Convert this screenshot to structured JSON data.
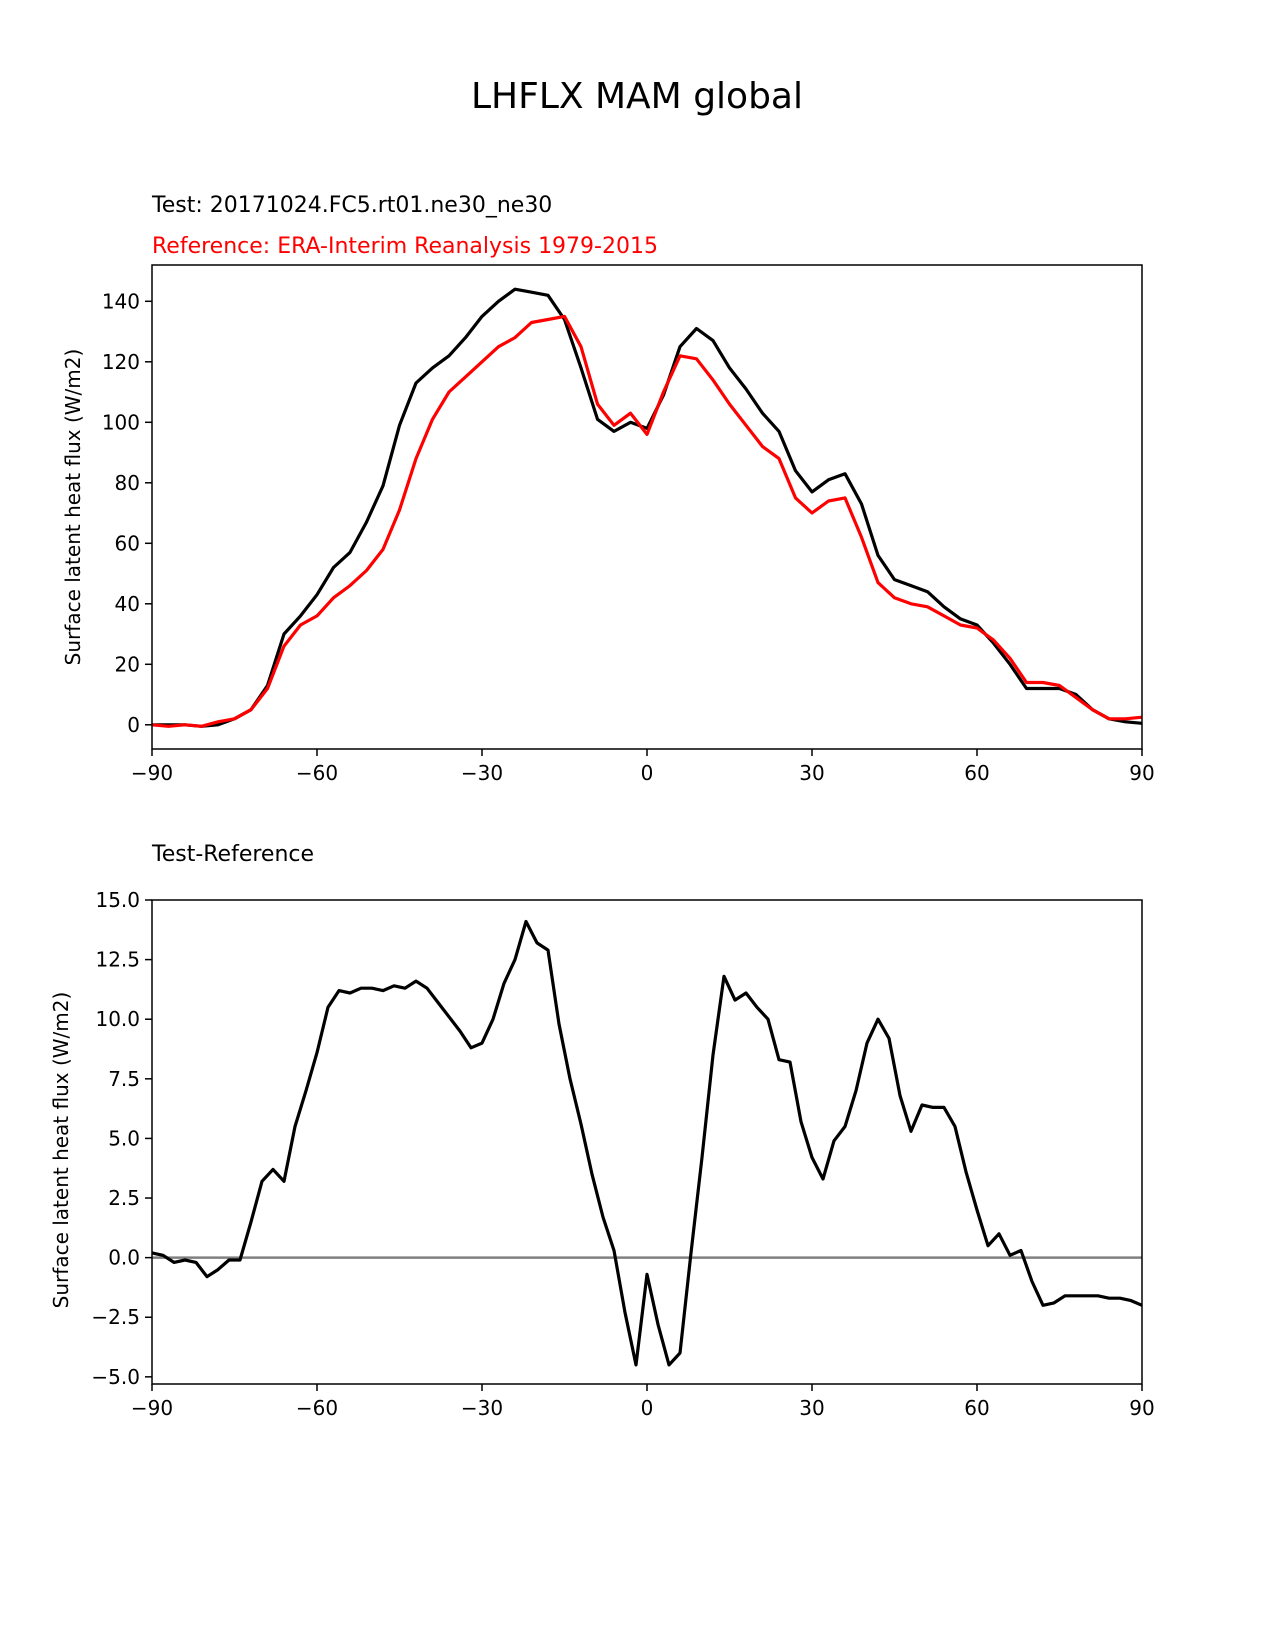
{
  "figure": {
    "title": "LHFLX MAM global"
  },
  "colors": {
    "test": "#000000",
    "reference": "#ff0000",
    "diff": "#000000",
    "zero_line": "#808080",
    "axes": "#000000"
  },
  "chart_data": [
    {
      "type": "line",
      "name": "zonal-mean",
      "test_label": "Test: 20171024.FC5.rt01.ne30_ne30",
      "reference_label": "Reference: ERA-Interim Reanalysis 1979-2015",
      "xlabel": "",
      "ylabel": "Surface latent heat flux (W/m2)",
      "xlim": [
        -90,
        90
      ],
      "ylim": [
        -8,
        152
      ],
      "xticks": [
        -90,
        -60,
        -30,
        0,
        30,
        60,
        90
      ],
      "xtick_labels": [
        "−90",
        "−60",
        "−30",
        "0",
        "30",
        "60",
        "90"
      ],
      "yticks": [
        0,
        20,
        40,
        60,
        80,
        100,
        120,
        140
      ],
      "ytick_labels": [
        "0",
        "20",
        "40",
        "60",
        "80",
        "100",
        "120",
        "140"
      ],
      "x": [
        -90,
        -87,
        -84,
        -81,
        -78,
        -75,
        -72,
        -69,
        -66,
        -63,
        -60,
        -57,
        -54,
        -51,
        -48,
        -45,
        -42,
        -39,
        -36,
        -33,
        -30,
        -27,
        -24,
        -21,
        -18,
        -15,
        -12,
        -9,
        -6,
        -3,
        0,
        3,
        6,
        9,
        12,
        15,
        18,
        21,
        24,
        27,
        30,
        33,
        36,
        39,
        42,
        45,
        48,
        51,
        54,
        57,
        60,
        63,
        66,
        69,
        72,
        75,
        78,
        81,
        84,
        87,
        90
      ],
      "series": [
        {
          "name": "Test",
          "values": [
            0,
            0,
            0,
            -0.5,
            0,
            2,
            5,
            13,
            30,
            36,
            43,
            52,
            57,
            67,
            79,
            99,
            113,
            118,
            122,
            128,
            135,
            140,
            144,
            143,
            142,
            134,
            118,
            101,
            97,
            100,
            98,
            109,
            125,
            131,
            127,
            118,
            111,
            103,
            97,
            84,
            77,
            81,
            83,
            73,
            56,
            48,
            46,
            44,
            39,
            35,
            33,
            27,
            20,
            12,
            12,
            12,
            10,
            5,
            2,
            1,
            0.5
          ]
        },
        {
          "name": "Reference",
          "values": [
            0,
            -0.5,
            0,
            -0.5,
            1,
            2,
            5,
            12,
            26,
            33,
            36,
            42,
            46,
            51,
            58,
            71,
            88,
            101,
            110,
            115,
            120,
            125,
            128,
            133,
            134,
            135,
            125,
            106,
            99,
            103,
            96,
            110,
            122,
            121,
            114,
            106,
            99,
            92,
            88,
            75,
            70,
            74,
            75,
            62,
            47,
            42,
            40,
            39,
            36,
            33,
            32,
            28,
            22,
            14,
            14,
            13,
            9,
            5,
            2,
            2,
            2.5
          ]
        }
      ]
    },
    {
      "type": "line",
      "name": "difference",
      "title": "Test-Reference",
      "xlabel": "",
      "ylabel": "Surface latent heat flux (W/m2)",
      "xlim": [
        -90,
        90
      ],
      "ylim": [
        -5.3,
        15
      ],
      "xticks": [
        -90,
        -60,
        -30,
        0,
        30,
        60,
        90
      ],
      "xtick_labels": [
        "−90",
        "−60",
        "−30",
        "0",
        "30",
        "60",
        "90"
      ],
      "yticks": [
        -5,
        -2.5,
        0,
        2.5,
        5,
        7.5,
        10,
        12.5,
        15
      ],
      "ytick_labels": [
        "−5.0",
        "−2.5",
        "0.0",
        "2.5",
        "5.0",
        "7.5",
        "10.0",
        "12.5",
        "15.0"
      ],
      "zero_line": 0,
      "x": [
        -90,
        -88,
        -86,
        -84,
        -82,
        -80,
        -78,
        -76,
        -74,
        -72,
        -70,
        -68,
        -66,
        -64,
        -62,
        -60,
        -58,
        -56,
        -54,
        -52,
        -50,
        -48,
        -46,
        -44,
        -42,
        -40,
        -38,
        -36,
        -34,
        -32,
        -30,
        -28,
        -26,
        -24,
        -22,
        -20,
        -18,
        -16,
        -14,
        -12,
        -10,
        -8,
        -6,
        -4,
        -2,
        0,
        2,
        4,
        6,
        8,
        10,
        12,
        14,
        16,
        18,
        20,
        22,
        24,
        26,
        28,
        30,
        32,
        34,
        36,
        38,
        40,
        42,
        44,
        46,
        48,
        50,
        52,
        54,
        56,
        58,
        60,
        62,
        64,
        66,
        68,
        70,
        72,
        74,
        76,
        78,
        80,
        82,
        84,
        86,
        88,
        90
      ],
      "series": [
        {
          "name": "Test-Reference",
          "values": [
            0.2,
            0.1,
            -0.2,
            -0.1,
            -0.2,
            -0.8,
            -0.5,
            -0.1,
            -0.1,
            1.5,
            3.2,
            3.7,
            3.2,
            5.5,
            7,
            8.6,
            10.5,
            11.2,
            11.1,
            11.3,
            11.3,
            11.2,
            11.4,
            11.3,
            11.6,
            11.3,
            10.7,
            10.1,
            9.5,
            8.8,
            9,
            10,
            11.5,
            12.5,
            14.1,
            13.2,
            12.9,
            9.8,
            7.5,
            5.6,
            3.5,
            1.7,
            0.3,
            -2.3,
            -4.5,
            -0.7,
            -2.8,
            -4.5,
            -4,
            0.2,
            4.2,
            8.5,
            11.8,
            10.8,
            11.1,
            10.5,
            10,
            8.3,
            8.2,
            5.7,
            4.2,
            3.3,
            4.9,
            5.5,
            7,
            9,
            10,
            9.2,
            6.8,
            5.3,
            6.4,
            6.3,
            6.3,
            5.5,
            3.6,
            2,
            0.5,
            1,
            0.1,
            0.3,
            -1,
            -2,
            -1.9,
            -1.6,
            -1.6,
            -1.6,
            -1.6,
            -1.7,
            -1.7,
            -1.8,
            -2
          ]
        }
      ]
    }
  ]
}
